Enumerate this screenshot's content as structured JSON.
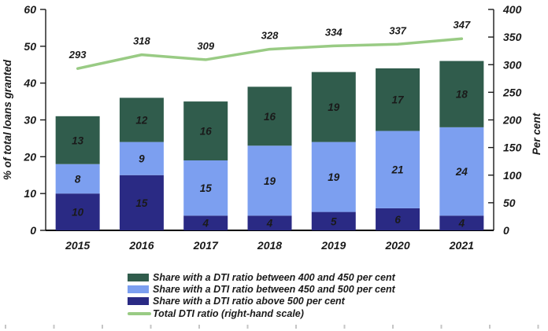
{
  "chart_data": {
    "type": "bar",
    "subtype": "stacked-column-with-line",
    "title": "",
    "categories": [
      "2015",
      "2016",
      "2017",
      "2018",
      "2019",
      "2020",
      "2021"
    ],
    "series": [
      {
        "name": "Share with a DTI ratio above 500 per cent",
        "color": "#2A2A84",
        "label_color": "#FFFFFF",
        "values": [
          10,
          15,
          4,
          4,
          5,
          6,
          4
        ]
      },
      {
        "name": "Share with a DTI ratio between 450 and 500 per cent",
        "color": "#7C9FF0",
        "label_color": "#1A1A1A",
        "values": [
          8,
          9,
          15,
          19,
          19,
          21,
          24
        ]
      },
      {
        "name": "Share with a DTI ratio between 400 and 450 per cent",
        "color": "#305C4C",
        "label_color": "#FFFFFF",
        "values": [
          13,
          12,
          16,
          16,
          19,
          17,
          18
        ]
      }
    ],
    "line_series": {
      "name": "Total DTI ratio (right-hand scale)",
      "color": "#99CB84",
      "values": [
        293,
        318,
        309,
        328,
        334,
        337,
        347
      ]
    },
    "left_axis": {
      "label": "% of total loans granted",
      "min": 0,
      "max": 60,
      "ticks": [
        0,
        10,
        20,
        30,
        40,
        50,
        60
      ]
    },
    "right_axis": {
      "label": "Per cent",
      "min": 0,
      "max": 400,
      "ticks": [
        0,
        50,
        100,
        150,
        200,
        250,
        300,
        350,
        400
      ]
    },
    "legend_position": "bottom",
    "grid": false,
    "legend": [
      {
        "label": "Share with a DTI ratio between 400 and 450 per cent",
        "swatch": "rect",
        "color": "#305C4C"
      },
      {
        "label": "Share with a DTI ratio between 450 and 500 per cent",
        "swatch": "rect",
        "color": "#7C9FF0"
      },
      {
        "label": "Share with a DTI ratio above 500 per cent",
        "swatch": "rect",
        "color": "#2A2A84"
      },
      {
        "label": "Total DTI ratio (right-hand scale)",
        "swatch": "line",
        "color": "#99CB84"
      }
    ]
  }
}
